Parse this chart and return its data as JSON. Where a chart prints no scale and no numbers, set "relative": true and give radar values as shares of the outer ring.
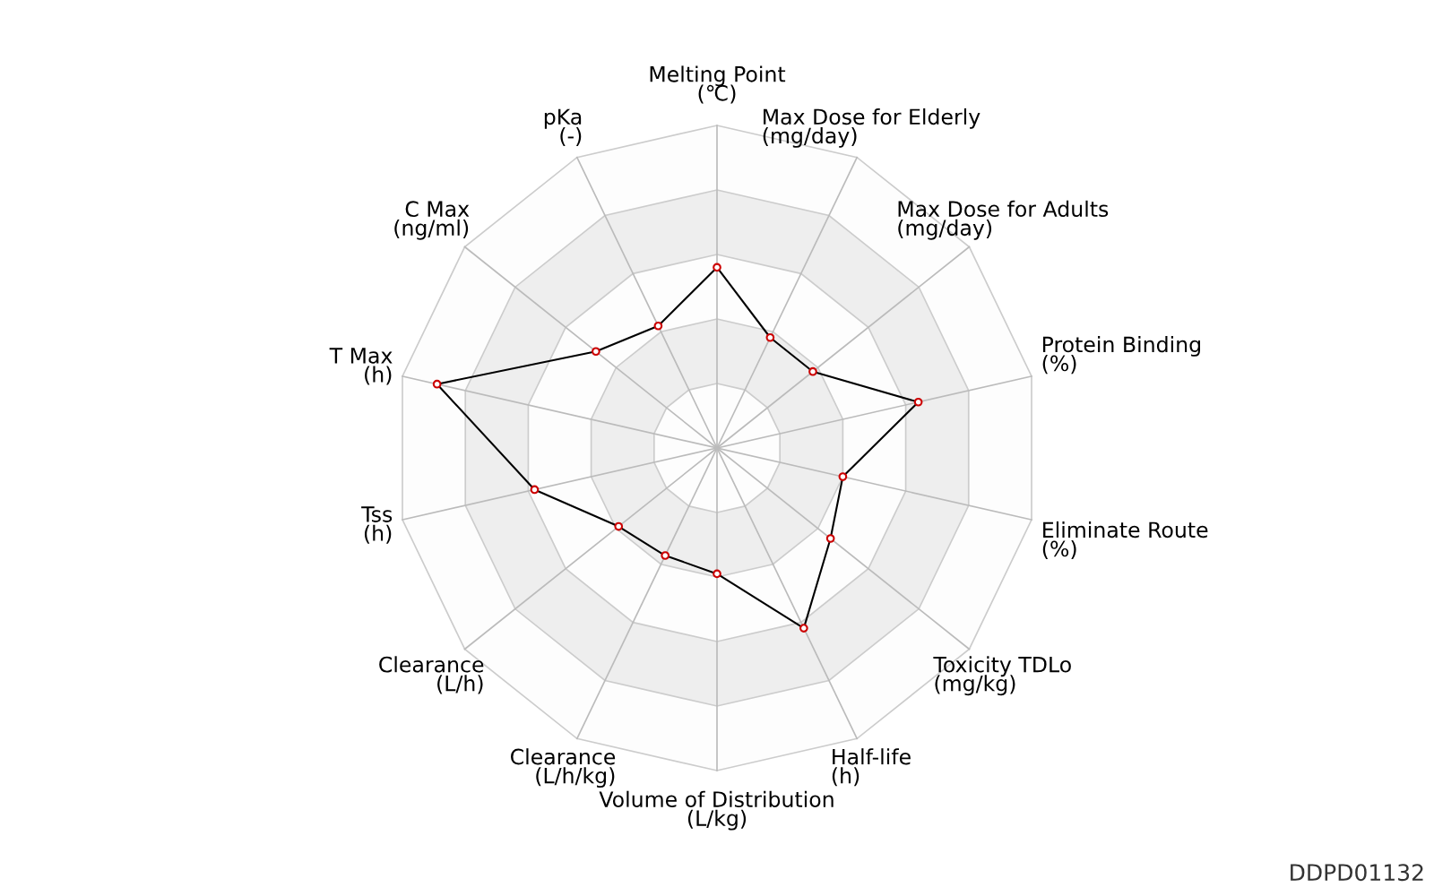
{
  "chart_data": {
    "type": "radar",
    "relative": true,
    "grid": true,
    "marker": "circle",
    "line_style": "solid",
    "categories": [
      "Melting Point\n(℃)",
      "Max Dose for Elderly\n(mg/day)",
      "Max Dose for Adults\n(mg/day)",
      "Protein Binding\n(%)",
      "Eliminate Route\n(%)",
      "Toxicity TDLo\n(mg/kg)",
      "Half-life\n(h)",
      "Volume of Distribution\n(L/kg)",
      "Clearance\n(L/h/kg)",
      "Clearance\n(L/h)",
      "Tss\n(h)",
      "T Max\n(h)",
      "C Max\n(ng/ml)",
      "pKa\n(-)"
    ],
    "series": [
      {
        "color": "#000000",
        "values": [
          0.56,
          0.38,
          0.38,
          0.64,
          0.4,
          0.45,
          0.62,
          0.39,
          0.37,
          0.39,
          0.58,
          0.89,
          0.48,
          0.42
        ]
      }
    ],
    "annotations": [
      "DDPD01132"
    ]
  }
}
